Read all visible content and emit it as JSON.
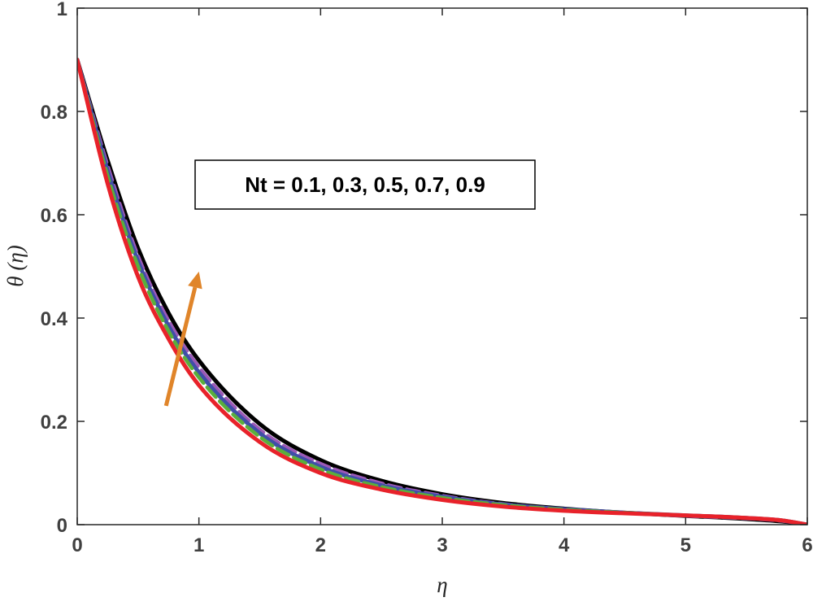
{
  "chart_data": {
    "type": "line",
    "xlabel": "η",
    "ylabel": "θ (η)",
    "xlim": [
      0,
      6
    ],
    "ylim": [
      0,
      1
    ],
    "xticks": [
      "0",
      "1",
      "2",
      "3",
      "4",
      "5",
      "6"
    ],
    "yticks": [
      "0",
      "0.2",
      "0.4",
      "0.6",
      "0.8",
      "1"
    ],
    "legend_text": "Nt = 0.1, 0.3, 0.5, 0.7, 0.9",
    "legend_placement": "upper-center",
    "grid": false,
    "annotation": "arrow indicating increasing Nt",
    "series": [
      {
        "color": "#e8222a",
        "style": "solid",
        "x": [
          0,
          0.25,
          0.5,
          0.75,
          1,
          1.5,
          2,
          2.5,
          3,
          3.5,
          4,
          4.5,
          5,
          5.5,
          5.8,
          6
        ],
        "y": [
          0.9,
          0.66,
          0.48,
          0.36,
          0.27,
          0.16,
          0.1,
          0.068,
          0.048,
          0.035,
          0.027,
          0.022,
          0.018,
          0.013,
          0.008,
          0.0
        ]
      },
      {
        "color": "#5aae3c",
        "style": "dashed",
        "x": [
          0,
          0.25,
          0.5,
          0.75,
          1,
          1.5,
          2,
          2.5,
          3,
          3.5,
          4,
          4.5,
          5,
          5.5,
          5.8,
          6
        ],
        "y": [
          0.9,
          0.675,
          0.5,
          0.375,
          0.285,
          0.17,
          0.107,
          0.073,
          0.052,
          0.038,
          0.029,
          0.023,
          0.018,
          0.013,
          0.008,
          0.0
        ]
      },
      {
        "color": "#3f4fa8",
        "style": "solid",
        "x": [
          0,
          0.25,
          0.5,
          0.75,
          1,
          1.5,
          2,
          2.5,
          3,
          3.5,
          4,
          4.5,
          5,
          5.5,
          5.8,
          6
        ],
        "y": [
          0.9,
          0.685,
          0.51,
          0.385,
          0.295,
          0.177,
          0.112,
          0.076,
          0.054,
          0.039,
          0.03,
          0.023,
          0.018,
          0.013,
          0.008,
          0.0
        ]
      },
      {
        "color": "#9b59b6",
        "style": "dashed",
        "x": [
          0,
          0.25,
          0.5,
          0.75,
          1,
          1.5,
          2,
          2.5,
          3,
          3.5,
          4,
          4.5,
          5,
          5.5,
          5.8,
          6
        ],
        "y": [
          0.9,
          0.695,
          0.52,
          0.395,
          0.305,
          0.184,
          0.118,
          0.08,
          0.056,
          0.04,
          0.03,
          0.023,
          0.017,
          0.012,
          0.007,
          0.0
        ]
      },
      {
        "color": "#000000",
        "style": "solid",
        "x": [
          0,
          0.25,
          0.5,
          0.75,
          1,
          1.5,
          2,
          2.5,
          3,
          3.5,
          4,
          4.5,
          5,
          5.5,
          5.8,
          6
        ],
        "y": [
          0.9,
          0.705,
          0.535,
          0.41,
          0.318,
          0.195,
          0.125,
          0.085,
          0.059,
          0.042,
          0.031,
          0.023,
          0.017,
          0.011,
          0.006,
          0.0
        ]
      }
    ],
    "arrow": {
      "color": "#e0852a",
      "from": [
        0.73,
        0.23
      ],
      "to": [
        1.0,
        0.49
      ]
    }
  }
}
